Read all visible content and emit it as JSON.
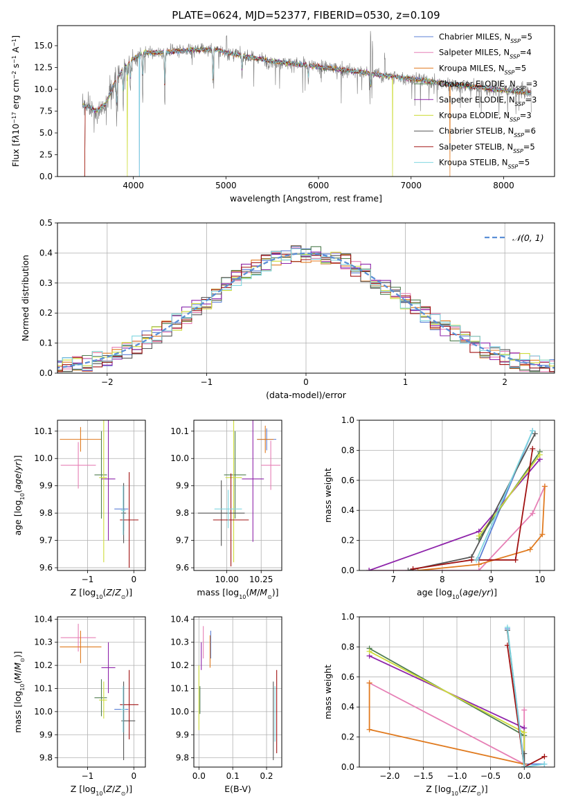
{
  "title": "PLATE=0624, MJD=52377, FIBERID=0530, z=0.109",
  "models": [
    {
      "name": "Chabrier MILES",
      "nssp": "5",
      "color": "#5b7fd6"
    },
    {
      "name": "Salpeter MILES",
      "nssp": "4",
      "color": "#e67fb5"
    },
    {
      "name": "Kroupa MILES",
      "nssp": "5",
      "color": "#e07a1f"
    },
    {
      "name": "Chabrier ELODIE",
      "nssp": "3",
      "color": "#4f7d4f"
    },
    {
      "name": "Salpeter ELODIE",
      "nssp": "3",
      "color": "#8e24aa"
    },
    {
      "name": "Kroupa ELODIE",
      "nssp": "3",
      "color": "#cddc39"
    },
    {
      "name": "Chabrier STELIB",
      "nssp": "6",
      "color": "#555555"
    },
    {
      "name": "Salpeter STELIB",
      "nssp": "5",
      "color": "#a01010"
    },
    {
      "name": "Kroupa STELIB",
      "nssp": "5",
      "color": "#7fd6e0"
    }
  ],
  "chart_data": [
    {
      "id": "spectrum",
      "type": "line",
      "xlabel": "wavelength [Angstrom, rest frame]",
      "ylabel_html": "Flux [f<tspan font-style='italic'>λ</tspan>10<tspan baseline-shift='super' font-size='8'>−17</tspan> erg cm<tspan baseline-shift='super' font-size='8'>−2</tspan> s<tspan baseline-shift='super' font-size='8'>−1</tspan> A<tspan baseline-shift='super' font-size='8'>−1</tspan>]",
      "xlim": [
        3180,
        8550
      ],
      "ylim": [
        0,
        17.3
      ],
      "xticks": [
        4000,
        5000,
        6000,
        7000,
        8000
      ],
      "yticks": [
        0.0,
        2.5,
        5.0,
        7.5,
        10.0,
        12.5,
        15.0
      ],
      "grid": false,
      "legend": "upper right",
      "data_range": [
        3450,
        8300
      ],
      "continuum": [
        [
          3450,
          8.2
        ],
        [
          3600,
          7.6
        ],
        [
          3700,
          8.3
        ],
        [
          3800,
          10.8
        ],
        [
          3900,
          12.5
        ],
        [
          4000,
          13.5
        ],
        [
          4100,
          14.2
        ],
        [
          4300,
          14.2
        ],
        [
          4600,
          14.5
        ],
        [
          4900,
          14.6
        ],
        [
          5000,
          14.2
        ],
        [
          5500,
          13.2
        ],
        [
          6000,
          12.6
        ],
        [
          6500,
          11.9
        ],
        [
          7000,
          11.2
        ],
        [
          7500,
          10.5
        ],
        [
          8000,
          9.9
        ],
        [
          8300,
          9.6
        ]
      ],
      "absorption": [
        [
          3820,
          5.2
        ],
        [
          3890,
          4.5
        ],
        [
          3933,
          2.2
        ],
        [
          3968,
          3.2
        ],
        [
          4101,
          5.0
        ],
        [
          4340,
          6.5
        ],
        [
          4861,
          6.0
        ],
        [
          5175,
          3.0
        ],
        [
          5890,
          2.0
        ],
        [
          6563,
          2.5
        ]
      ],
      "emission": [
        [
          6563,
          7.0
        ],
        [
          6583,
          3.5
        ],
        [
          4861,
          2.5
        ],
        [
          5007,
          2.0
        ],
        [
          6717,
          1.8
        ]
      ],
      "cutoffs": [
        {
          "x": 3935,
          "series": [
            5
          ]
        },
        {
          "x": 4065,
          "series": [
            0,
            8
          ]
        },
        {
          "x": 6800,
          "series": [
            5
          ]
        },
        {
          "x": 7420,
          "series": [
            2
          ]
        }
      ],
      "left_cut": {
        "x": 3480,
        "series": [
          2,
          7,
          0
        ]
      }
    },
    {
      "id": "residuals",
      "type": "step-histogram",
      "xlabel": "(data-model)/error",
      "ylabel": "Normed distribution",
      "xlim": [
        -2.5,
        2.5
      ],
      "ylim": [
        0,
        0.5
      ],
      "xticks": [
        -2,
        -1,
        0,
        1,
        2
      ],
      "yticks": [
        0.0,
        0.1,
        0.2,
        0.3,
        0.4,
        0.5
      ],
      "grid": true,
      "legend": "upper right",
      "reference_label": "𝒩(0, 1)",
      "reference_color": "#5b8fd6",
      "bin_width": 0.1
    },
    {
      "id": "age_vs_Z",
      "type": "errorbar",
      "xlabel_html": "Z [log<tspan baseline-shift='sub' font-size='8'>10</tspan>(<tspan font-style='italic'>Z</tspan>/<tspan font-style='italic'>Z</tspan><tspan baseline-shift='sub' font-size='8'>⊙</tspan>)]",
      "ylabel_html": "age  [log<tspan baseline-shift='sub' font-size='8'>10</tspan>(<tspan font-style='italic'>age</tspan>/<tspan font-style='italic'>yr</tspan>)]",
      "xlim": [
        -1.65,
        0.25
      ],
      "ylim": [
        9.59,
        10.14
      ],
      "xticks": [
        -1,
        0
      ],
      "yticks": [
        9.6,
        9.7,
        9.8,
        9.9,
        10.0,
        10.1
      ],
      "grid": true,
      "points": [
        {
          "s": 0,
          "x": -0.22,
          "y": 9.815,
          "xe": [
            0.2,
            0.1
          ],
          "ye": [
            0.08,
            0.08
          ]
        },
        {
          "s": 1,
          "x": -1.2,
          "y": 9.975,
          "xe": [
            0.38,
            0.38
          ],
          "ye": [
            0.085,
            0.085
          ]
        },
        {
          "s": 2,
          "x": -1.15,
          "y": 10.07,
          "xe": [
            0.45,
            0.45
          ],
          "ye": [
            0.045,
            0.045
          ]
        },
        {
          "s": 3,
          "x": -0.7,
          "y": 9.94,
          "xe": [
            0.15,
            0.12
          ],
          "ye": [
            0.16,
            0.16
          ]
        },
        {
          "s": 4,
          "x": -0.55,
          "y": 9.925,
          "xe": [
            0.15,
            0.15
          ],
          "ye": [
            0.225,
            0.225
          ]
        },
        {
          "s": 5,
          "x": -0.65,
          "y": 9.93,
          "xe": [
            0.1,
            0.07
          ],
          "ye": [
            0.31,
            0.31
          ]
        },
        {
          "s": 6,
          "x": -0.22,
          "y": 9.8,
          "xe": [
            0.05,
            0.05
          ],
          "ye": [
            0.11,
            0.11
          ]
        },
        {
          "s": 7,
          "x": -0.1,
          "y": 9.775,
          "xe": [
            0.2,
            0.2
          ],
          "ye": [
            0.175,
            0.175
          ]
        },
        {
          "s": 8,
          "x": -0.23,
          "y": 9.81,
          "xe": [
            0.05,
            0.05
          ],
          "ye": [
            0.09,
            0.09
          ]
        }
      ]
    },
    {
      "id": "age_vs_mass",
      "type": "errorbar",
      "xlabel_html": "mass [log<tspan baseline-shift='sub' font-size='8'>10</tspan>(<tspan font-style='italic'>M</tspan>/<tspan font-style='italic'>M</tspan><tspan baseline-shift='sub' font-size='8'>⊙</tspan>)]",
      "xlim": [
        9.76,
        10.4
      ],
      "ylim": [
        9.59,
        10.14
      ],
      "xticks": [
        10.0,
        10.25
      ],
      "yticks": [
        9.6,
        9.7,
        9.8,
        9.9,
        10.0,
        10.1
      ],
      "grid": true,
      "points": [
        {
          "s": 0,
          "x": 10.29,
          "y": 10.07,
          "xe": [
            0.07,
            0.07
          ],
          "ye": [
            0.04,
            0.04
          ]
        },
        {
          "s": 1,
          "x": 10.32,
          "y": 9.975,
          "xe": [
            0.07,
            0.07
          ],
          "ye": [
            0.09,
            0.09
          ]
        },
        {
          "s": 2,
          "x": 10.28,
          "y": 10.07,
          "xe": [
            0.06,
            0.06
          ],
          "ye": [
            0.05,
            0.05
          ]
        },
        {
          "s": 3,
          "x": 10.06,
          "y": 9.94,
          "xe": [
            0.08,
            0.08
          ],
          "ye": [
            0.16,
            0.16
          ]
        },
        {
          "s": 4,
          "x": 10.19,
          "y": 9.925,
          "xe": [
            0.08,
            0.08
          ],
          "ye": [
            0.23,
            0.23
          ]
        },
        {
          "s": 5,
          "x": 10.05,
          "y": 9.93,
          "xe": [
            0.06,
            0.06
          ],
          "ye": [
            0.31,
            0.31
          ]
        },
        {
          "s": 6,
          "x": 9.96,
          "y": 9.8,
          "xe": [
            0.17,
            0.17
          ],
          "ye": [
            0.12,
            0.12
          ]
        },
        {
          "s": 7,
          "x": 10.03,
          "y": 9.775,
          "xe": [
            0.13,
            0.13
          ],
          "ye": [
            0.17,
            0.17
          ]
        },
        {
          "s": 8,
          "x": 10.01,
          "y": 9.815,
          "xe": [
            0.1,
            0.1
          ],
          "ye": [
            0.07,
            0.07
          ]
        }
      ]
    },
    {
      "id": "weight_vs_age",
      "type": "line",
      "xlabel_html": "age  [log<tspan baseline-shift='sub' font-size='8'>10</tspan>(<tspan font-style='italic'>age</tspan>/<tspan font-style='italic'>yr</tspan>)]",
      "ylabel": "mass weight",
      "xlim": [
        6.3,
        10.3
      ],
      "ylim": [
        0,
        1.0
      ],
      "xticks": [
        7,
        8,
        9,
        10
      ],
      "yticks": [
        0.0,
        0.2,
        0.4,
        0.6,
        0.8,
        1.0
      ],
      "grid": true,
      "series": [
        {
          "s": 0,
          "x": [
            8.75,
            9.85
          ],
          "y": [
            0.07,
            0.93
          ]
        },
        {
          "s": 1,
          "x": [
            6.5,
            8.75,
            9.85,
            10.1
          ],
          "y": [
            0.0,
            0.0,
            0.38,
            0.56
          ]
        },
        {
          "s": 2,
          "x": [
            7.5,
            8.75,
            9.8,
            10.05,
            10.1
          ],
          "y": [
            0.0,
            0.04,
            0.14,
            0.24,
            0.56
          ]
        },
        {
          "s": 3,
          "x": [
            8.75,
            10.0
          ],
          "y": [
            0.21,
            0.79
          ]
        },
        {
          "s": 4,
          "x": [
            6.5,
            8.75,
            10.0
          ],
          "y": [
            0.0,
            0.26,
            0.74
          ]
        },
        {
          "s": 5,
          "x": [
            8.75,
            10.0
          ],
          "y": [
            0.23,
            0.77
          ]
        },
        {
          "s": 6,
          "x": [
            7.3,
            8.6,
            9.9
          ],
          "y": [
            0.0,
            0.09,
            0.91
          ]
        },
        {
          "s": 7,
          "x": [
            7.4,
            8.6,
            9.5,
            9.85
          ],
          "y": [
            0.01,
            0.07,
            0.07,
            0.81
          ]
        },
        {
          "s": 8,
          "x": [
            8.7,
            9.85
          ],
          "y": [
            0.07,
            0.93
          ]
        }
      ]
    },
    {
      "id": "mass_vs_Z",
      "type": "errorbar",
      "xlabel_html": "Z [log<tspan baseline-shift='sub' font-size='8'>10</tspan>(<tspan font-style='italic'>Z</tspan>/<tspan font-style='italic'>Z</tspan><tspan baseline-shift='sub' font-size='8'>⊙</tspan>)]",
      "ylabel_html": "mass [log<tspan baseline-shift='sub' font-size='8'>10</tspan>(<tspan font-style='italic'>M</tspan>/<tspan font-style='italic'>M</tspan><tspan baseline-shift='sub' font-size='8'>⊙</tspan>)]",
      "xlim": [
        -1.65,
        0.25
      ],
      "ylim": [
        9.76,
        10.41
      ],
      "xticks": [
        -1,
        0
      ],
      "yticks": [
        9.8,
        9.9,
        10.0,
        10.1,
        10.2,
        10.3,
        10.4
      ],
      "grid": true,
      "points": [
        {
          "s": 0,
          "x": -0.22,
          "y": 10.01,
          "xe": [
            0.2,
            0.1
          ],
          "ye": [
            0.1,
            0.1
          ]
        },
        {
          "s": 1,
          "x": -1.2,
          "y": 10.32,
          "xe": [
            0.38,
            0.38
          ],
          "ye": [
            0.06,
            0.06
          ]
        },
        {
          "s": 2,
          "x": -1.15,
          "y": 10.28,
          "xe": [
            0.45,
            0.45
          ],
          "ye": [
            0.07,
            0.07
          ]
        },
        {
          "s": 3,
          "x": -0.7,
          "y": 10.06,
          "xe": [
            0.15,
            0.12
          ],
          "ye": [
            0.08,
            0.08
          ]
        },
        {
          "s": 4,
          "x": -0.55,
          "y": 10.19,
          "xe": [
            0.15,
            0.15
          ],
          "ye": [
            0.11,
            0.11
          ]
        },
        {
          "s": 5,
          "x": -0.65,
          "y": 10.05,
          "xe": [
            0.1,
            0.07
          ],
          "ye": [
            0.08,
            0.08
          ]
        },
        {
          "s": 6,
          "x": -0.22,
          "y": 9.96,
          "xe": [
            0.05,
            0.25
          ],
          "ye": [
            0.17,
            0.17
          ]
        },
        {
          "s": 7,
          "x": -0.1,
          "y": 10.03,
          "xe": [
            0.2,
            0.2
          ],
          "ye": [
            0.15,
            0.15
          ]
        },
        {
          "s": 8,
          "x": -0.23,
          "y": 10.01,
          "xe": [
            0.05,
            0.05
          ],
          "ye": [
            0.1,
            0.1
          ]
        }
      ]
    },
    {
      "id": "mass_vs_ebv",
      "type": "errorbar",
      "xlabel": "E(B-V)",
      "xlim": [
        -0.015,
        0.245
      ],
      "ylim": [
        9.76,
        10.41
      ],
      "xticks": [
        0.0,
        0.1,
        0.2
      ],
      "yticks": [
        9.8,
        9.9,
        10.0,
        10.1,
        10.2,
        10.3,
        10.4
      ],
      "grid": true,
      "points": [
        {
          "s": 0,
          "x": 0.035,
          "y": 10.29,
          "xe": [
            0,
            0
          ],
          "ye": [
            0.06,
            0.06
          ]
        },
        {
          "s": 1,
          "x": 0.013,
          "y": 10.3,
          "xe": [
            0,
            0
          ],
          "ye": [
            0.07,
            0.07
          ]
        },
        {
          "s": 2,
          "x": 0.033,
          "y": 10.26,
          "xe": [
            0,
            0
          ],
          "ye": [
            0.07,
            0.07
          ]
        },
        {
          "s": 3,
          "x": 0.003,
          "y": 10.05,
          "xe": [
            0,
            0
          ],
          "ye": [
            0.06,
            0.06
          ]
        },
        {
          "s": 4,
          "x": 0.007,
          "y": 10.24,
          "xe": [
            0,
            0
          ],
          "ye": [
            0.06,
            0.06
          ]
        },
        {
          "s": 5,
          "x": 0.0,
          "y": 10.06,
          "xe": [
            0,
            0
          ],
          "ye": [
            0.14,
            0.14
          ]
        },
        {
          "s": 6,
          "x": 0.22,
          "y": 9.96,
          "xe": [
            0,
            0
          ],
          "ye": [
            0.17,
            0.17
          ]
        },
        {
          "s": 7,
          "x": 0.23,
          "y": 10.0,
          "xe": [
            0,
            0
          ],
          "ye": [
            0.18,
            0.18
          ]
        },
        {
          "s": 8,
          "x": 0.225,
          "y": 9.99,
          "xe": [
            0,
            0
          ],
          "ye": [
            0.12,
            0.12
          ]
        }
      ]
    },
    {
      "id": "weight_vs_Z",
      "type": "line",
      "xlabel_html": "Z [log<tspan baseline-shift='sub' font-size='8'>10</tspan>(<tspan font-style='italic'>Z</tspan>/<tspan font-style='italic'>Z</tspan><tspan baseline-shift='sub' font-size='8'>⊙</tspan>)]",
      "ylabel": "mass weight",
      "xlim": [
        -2.45,
        0.45
      ],
      "ylim": [
        0,
        1.0
      ],
      "xticks": [
        -2.0,
        -1.5,
        -1.0,
        -0.5,
        0.0
      ],
      "yticks": [
        0.0,
        0.2,
        0.4,
        0.6,
        0.8,
        1.0
      ],
      "grid": true,
      "series": [
        {
          "s": 0,
          "x": [
            -0.25,
            0.0,
            0.3
          ],
          "y": [
            0.92,
            0.02,
            0.02
          ]
        },
        {
          "s": 1,
          "x": [
            -2.3,
            0.0,
            0.0
          ],
          "y": [
            0.56,
            0.02,
            0.38
          ]
        },
        {
          "s": 2,
          "x": [
            -2.3,
            -2.3,
            0.0,
            0.0
          ],
          "y": [
            0.56,
            0.25,
            0.02,
            0.0
          ]
        },
        {
          "s": 3,
          "x": [
            -2.3,
            0.0,
            0.0
          ],
          "y": [
            0.79,
            0.21,
            0.0
          ]
        },
        {
          "s": 4,
          "x": [
            -2.3,
            0.0,
            0.0
          ],
          "y": [
            0.74,
            0.26,
            0.0
          ]
        },
        {
          "s": 5,
          "x": [
            -2.3,
            0.0,
            0.0
          ],
          "y": [
            0.77,
            0.23,
            0.0
          ]
        },
        {
          "s": 6,
          "x": [
            -0.25,
            0.0,
            0.0
          ],
          "y": [
            0.91,
            0.0,
            0.09
          ]
        },
        {
          "s": 7,
          "x": [
            -0.25,
            0.0,
            0.3
          ],
          "y": [
            0.81,
            0.0,
            0.07
          ]
        },
        {
          "s": 8,
          "x": [
            -0.25,
            0.0,
            0.3
          ],
          "y": [
            0.93,
            0.0,
            0.02
          ]
        }
      ]
    }
  ]
}
